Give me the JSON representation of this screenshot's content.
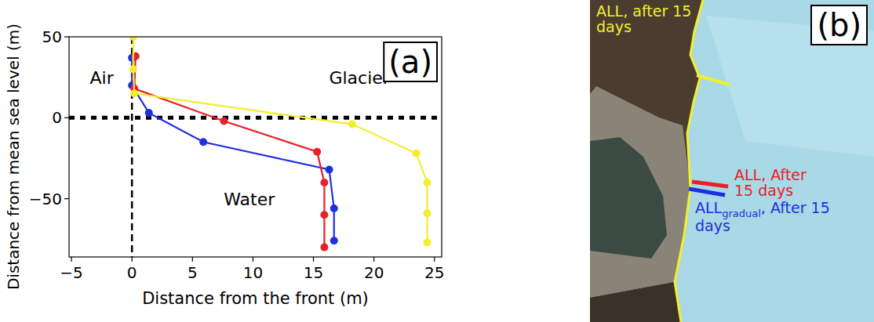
{
  "chart_data": {
    "type": "line",
    "panel_label": "(a)",
    "x_label": "Distance from the front (m)",
    "y_label": "Distance from mean sea level (m)",
    "xlim": [
      -5.2,
      25.6
    ],
    "ylim": [
      -86,
      50
    ],
    "xticks": [
      {
        "value": -5,
        "label": "−5"
      },
      0,
      5,
      10,
      15,
      20,
      25
    ],
    "yticks": [
      {
        "value": -50,
        "label": "−50"
      },
      0,
      50
    ],
    "grid": false,
    "marker": "circle",
    "reference_lines": [
      {
        "axis": "x",
        "value": 0,
        "line_style": "dashed"
      },
      {
        "axis": "y",
        "value": 0,
        "line_style": "dotted"
      }
    ],
    "annotations": [
      {
        "text": "Air",
        "x": -2.5,
        "y": 25
      },
      {
        "text": "Glacier",
        "x": 18.8,
        "y": 25
      },
      {
        "text": "Water",
        "x": 9.7,
        "y": -50
      }
    ],
    "series": [
      {
        "color": "#1f2fe0",
        "x": [
          0,
          0,
          1.4,
          5.9,
          16.3,
          16.7,
          16.7
        ],
        "values": [
          37,
          20,
          3,
          -15,
          -32,
          -56,
          -76
        ]
      },
      {
        "color": "#e8202a",
        "x": [
          0.3,
          0.2,
          7.6,
          15.3,
          15.9,
          15.9,
          15.9
        ],
        "values": [
          38,
          18,
          -2,
          -21,
          -40,
          -60,
          -80
        ]
      },
      {
        "color": "#f2ee2e",
        "x": [
          0.1,
          0.1,
          0.2,
          18.2,
          23.5,
          24.4,
          24.4,
          24.4
        ],
        "values": [
          50,
          30,
          15,
          -4,
          -22,
          -40,
          -59,
          -77
        ]
      }
    ]
  },
  "panel_b": {
    "letter": "(b)",
    "labels": [
      {
        "text": "ALL, after 15 days",
        "color": "#f2ee2e"
      },
      {
        "text": "ALL, After 15 days",
        "color": "#e8202a"
      },
      {
        "parts": [
          "ALL",
          "gradual",
          ", After 15 days"
        ],
        "color": "#1f2fe0"
      }
    ]
  }
}
